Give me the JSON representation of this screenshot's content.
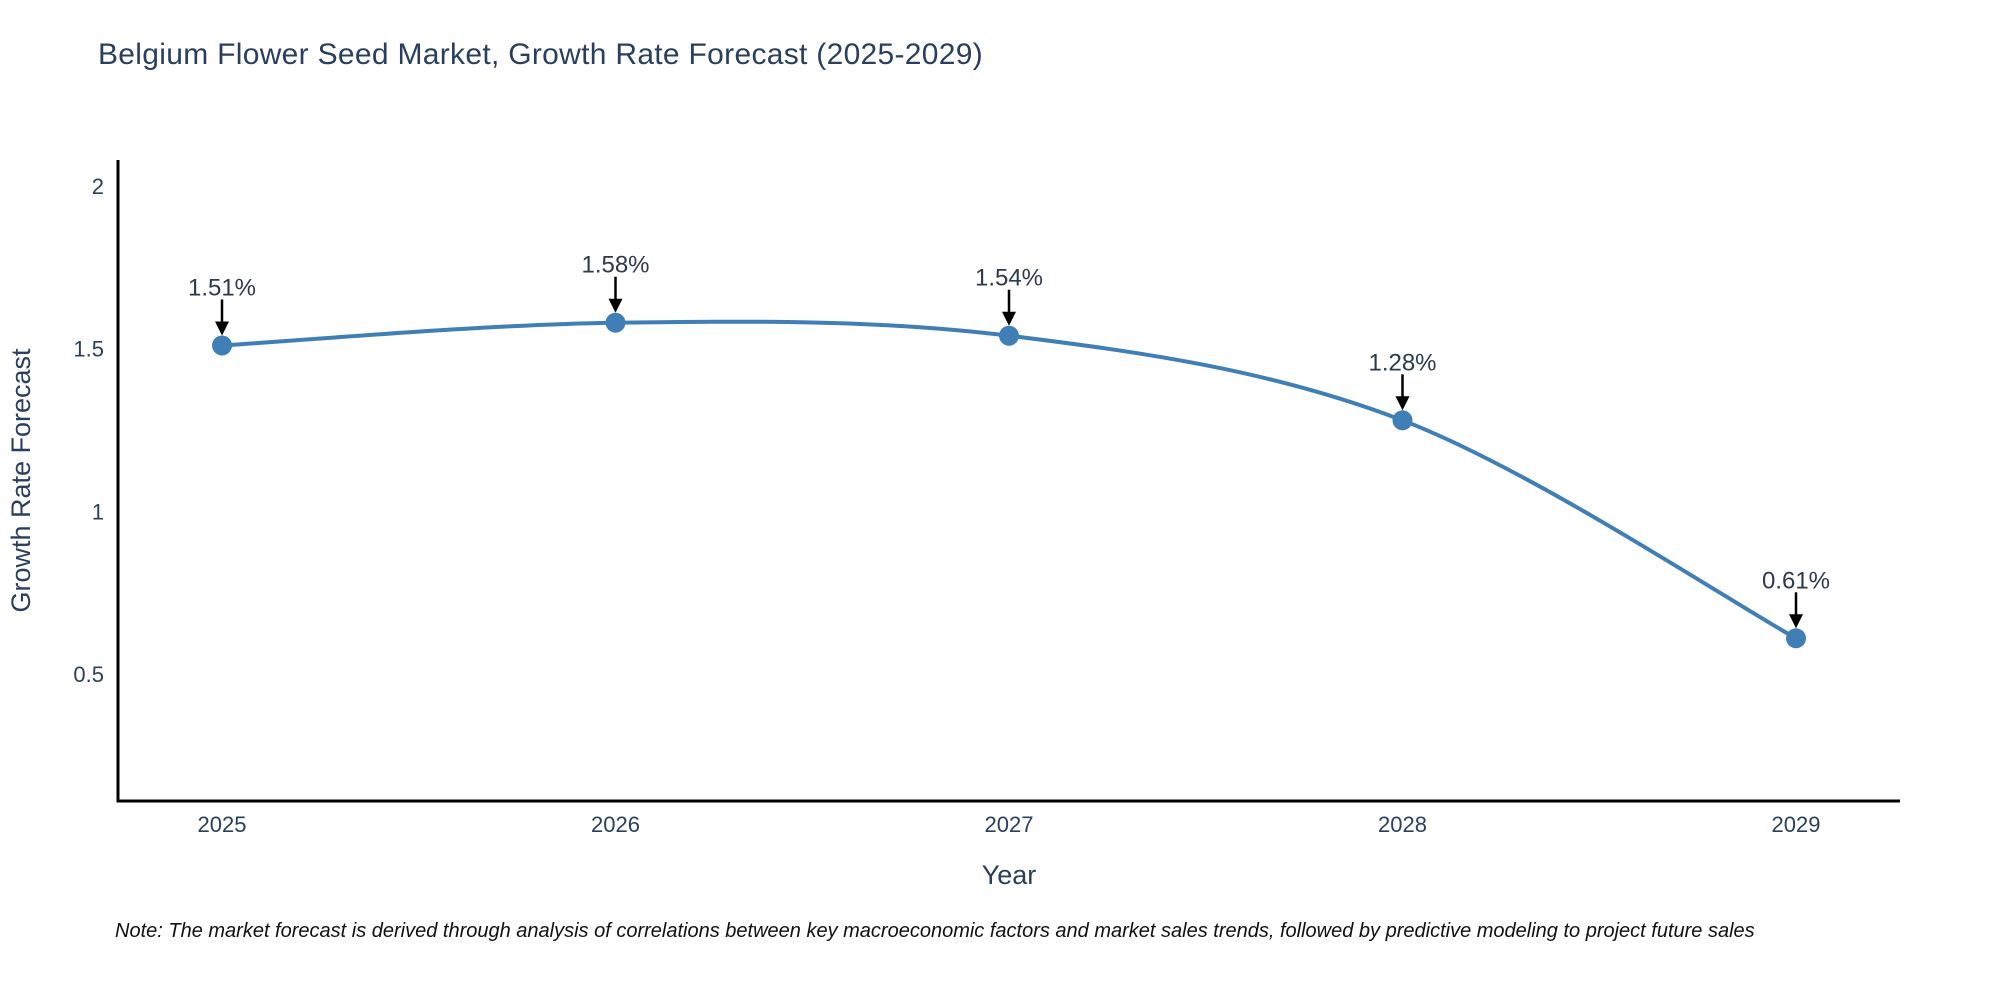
{
  "page": {
    "title": "Belgium Flower Seed Market, Growth Rate Forecast (2025-2029)",
    "note": "Note: The market forecast is derived through analysis of correlations between key macroeconomic factors and market sales trends, followed by predictive modeling to project future sales"
  },
  "chart_data": {
    "type": "line",
    "title": "Belgium Flower Seed Market, Growth Rate Forecast (2025-2029)",
    "x": [
      "2025",
      "2026",
      "2027",
      "2028",
      "2029"
    ],
    "series": [
      {
        "name": "Growth Rate Forecast",
        "values": [
          1.51,
          1.58,
          1.54,
          1.28,
          0.61
        ]
      }
    ],
    "point_labels": [
      "1.51%",
      "1.58%",
      "1.54%",
      "1.28%",
      "0.61%"
    ],
    "xlabel": "Year",
    "ylabel": "Growth Rate Forecast",
    "yticks": [
      0.5,
      1,
      1.5,
      2
    ],
    "ylim": [
      0.11,
      2.08
    ],
    "grid": false,
    "legend": "none",
    "line_shape": "spline",
    "colors": {
      "line": "#3f7fb5",
      "marker": "#3f7fb5",
      "axis": "#000000",
      "tick_text": "#2a3f5f",
      "axis_title_text": "#2a3f5f",
      "annotation_text": "#2d3a4a",
      "arrow": "#000000",
      "background": "#ffffff"
    }
  }
}
